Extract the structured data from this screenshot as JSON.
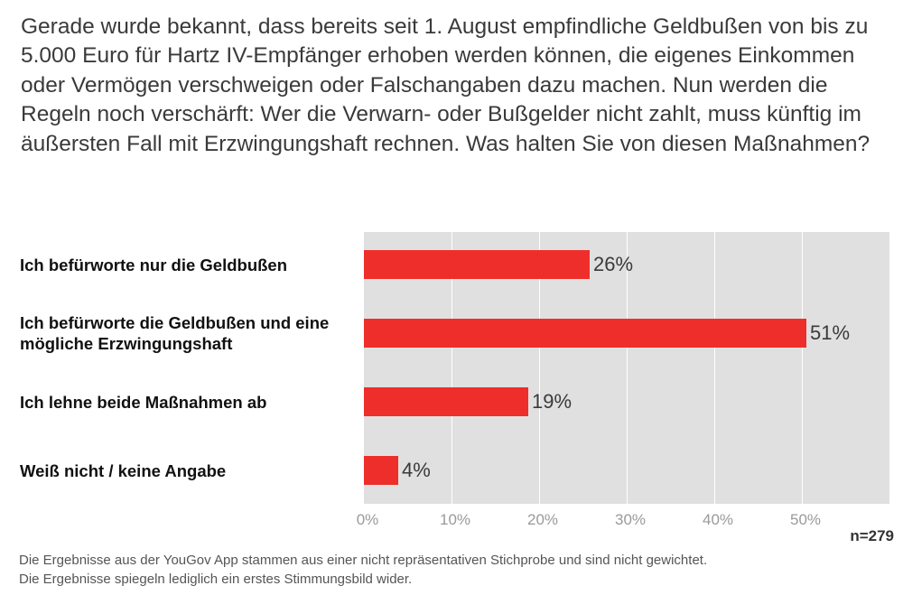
{
  "question": "Gerade wurde bekannt, dass bereits seit 1. August empfindliche Geldbußen von bis zu 5.000 Euro für Hartz IV-Empfänger erhoben werden können, die eigenes Einkommen oder Vermögen verschweigen oder Falschangaben dazu machen. Nun werden die Regeln noch verschärft: Wer die Verwarn- oder Bußgelder nicht zahlt, muss künftig im äußersten Fall mit Erzwingungshaft rechnen. Was halten Sie von diesen Maßnahmen?",
  "sample_size": "n=279",
  "footnote": {
    "line1": "Die Ergebnisse aus der YouGov App stammen aus einer nicht repräsentativen Stichprobe und sind nicht gewichtet.",
    "line2": "Die Ergebnisse spiegeln lediglich ein erstes Stimmungsbild wider."
  },
  "colors": {
    "bar": "#ee2e2a",
    "plot_background": "#e0e0e0"
  },
  "chart_data": {
    "type": "bar",
    "orientation": "horizontal",
    "title": "Gerade wurde bekannt, dass bereits seit 1. August empfindliche Geldbußen von bis zu 5.000 Euro für Hartz IV-Empfänger erhoben werden können, die eigenes Einkommen oder Vermögen verschweigen oder Falschangaben dazu machen. Nun werden die Regeln noch verschärft: Wer die Verwarn- oder Bußgelder nicht zahlt, muss künftig im äußersten Fall mit Erzwingungshaft rechnen. Was halten Sie von diesen Maßnahmen?",
    "categories": [
      "Ich befürworte nur die Geldbußen",
      "Ich befürworte die Geldbußen und eine mögliche Erzwingungshaft",
      "Ich lehne beide Maßnahmen ab",
      "Weiß nicht / keine Angabe"
    ],
    "values": [
      26,
      51,
      19,
      4
    ],
    "value_labels": [
      "26%",
      "51%",
      "19%",
      "4%"
    ],
    "xlim": [
      0,
      60
    ],
    "ticks": [
      0,
      10,
      20,
      30,
      40,
      50
    ],
    "tick_labels": [
      "0%",
      "10%",
      "20%",
      "30%",
      "40%",
      "50%"
    ],
    "xlabel": "",
    "ylabel": "",
    "grid": true
  }
}
